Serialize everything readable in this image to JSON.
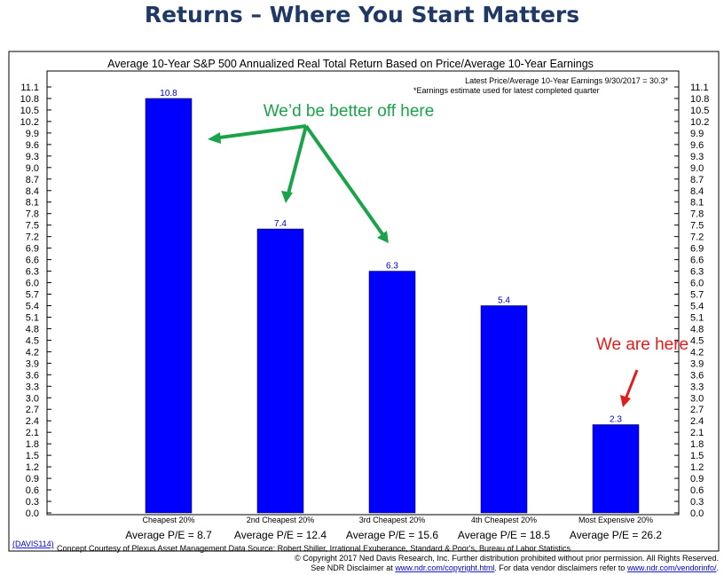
{
  "slide_title": "Returns – Where You Start Matters",
  "chart_title": "Average 10-Year S&P 500 Annualized Real Total Return Based on Price/Average 10-Year Earnings",
  "note_line1": "Latest Price/Average 10-Year Earnings 9/30/2017 = 30.3*",
  "note_line2": "*Earnings estimate used for latest completed quarter",
  "annotations": {
    "better": "We’d be better off here",
    "here": "We are here",
    "better_color": "#1aa34a",
    "here_color": "#e31b1b"
  },
  "pe_labels": [
    "Average P/E = 8.7",
    "Average P/E = 12.4",
    "Average P/E = 15.6",
    "Average P/E = 18.5",
    "Average P/E = 26.2"
  ],
  "footer": {
    "code": "(DAVIS114)",
    "concept": "Concept Courtesy of Plexus Asset Management Data Source: Robert Shiller, Irrational Exuberance, Standard & Poor's, Bureau of Labor Statistics",
    "copyright": "© Copyright 2017 Ned Davis Research, Inc. Further distribution prohibited without prior permission. All Rights Reserved.",
    "disclaimer_a": "See NDR Disclaimer at",
    "link1": "www.ndr.com/copyright.html",
    "disclaimer_b": ". For data vendor disclaimers refer to",
    "link2": "www.ndr.com/vendorinfo/",
    "disclaimer_c": "."
  },
  "chart_data": {
    "type": "bar",
    "title": "Average 10-Year S&P 500 Annualized Real Total Return Based on Price/Average 10-Year Earnings",
    "categories": [
      "Cheapest 20%",
      "2nd Cheapest 20%",
      "3rd Cheapest 20%",
      "4th Cheapest 20%",
      "Most Expensive 20%"
    ],
    "values": [
      10.8,
      7.4,
      6.3,
      5.4,
      2.3
    ],
    "data_labels": [
      "10.8",
      "7.4",
      "6.3",
      "5.4",
      "2.3"
    ],
    "yticks": [
      "0.0",
      "0.3",
      "0.6",
      "0.9",
      "1.2",
      "1.5",
      "1.8",
      "2.1",
      "2.4",
      "2.7",
      "3.0",
      "3.3",
      "3.6",
      "3.9",
      "4.2",
      "4.5",
      "4.8",
      "5.1",
      "5.4",
      "5.7",
      "6.0",
      "6.3",
      "6.6",
      "6.9",
      "7.2",
      "7.5",
      "7.8",
      "8.1",
      "8.4",
      "8.7",
      "9.0",
      "9.3",
      "9.6",
      "9.9",
      "10.2",
      "10.5",
      "10.8",
      "11.1"
    ],
    "ylim": [
      0,
      11.1
    ],
    "axes": "y ticks on both left and right",
    "grid": false,
    "bar_color": "#0000ff"
  }
}
